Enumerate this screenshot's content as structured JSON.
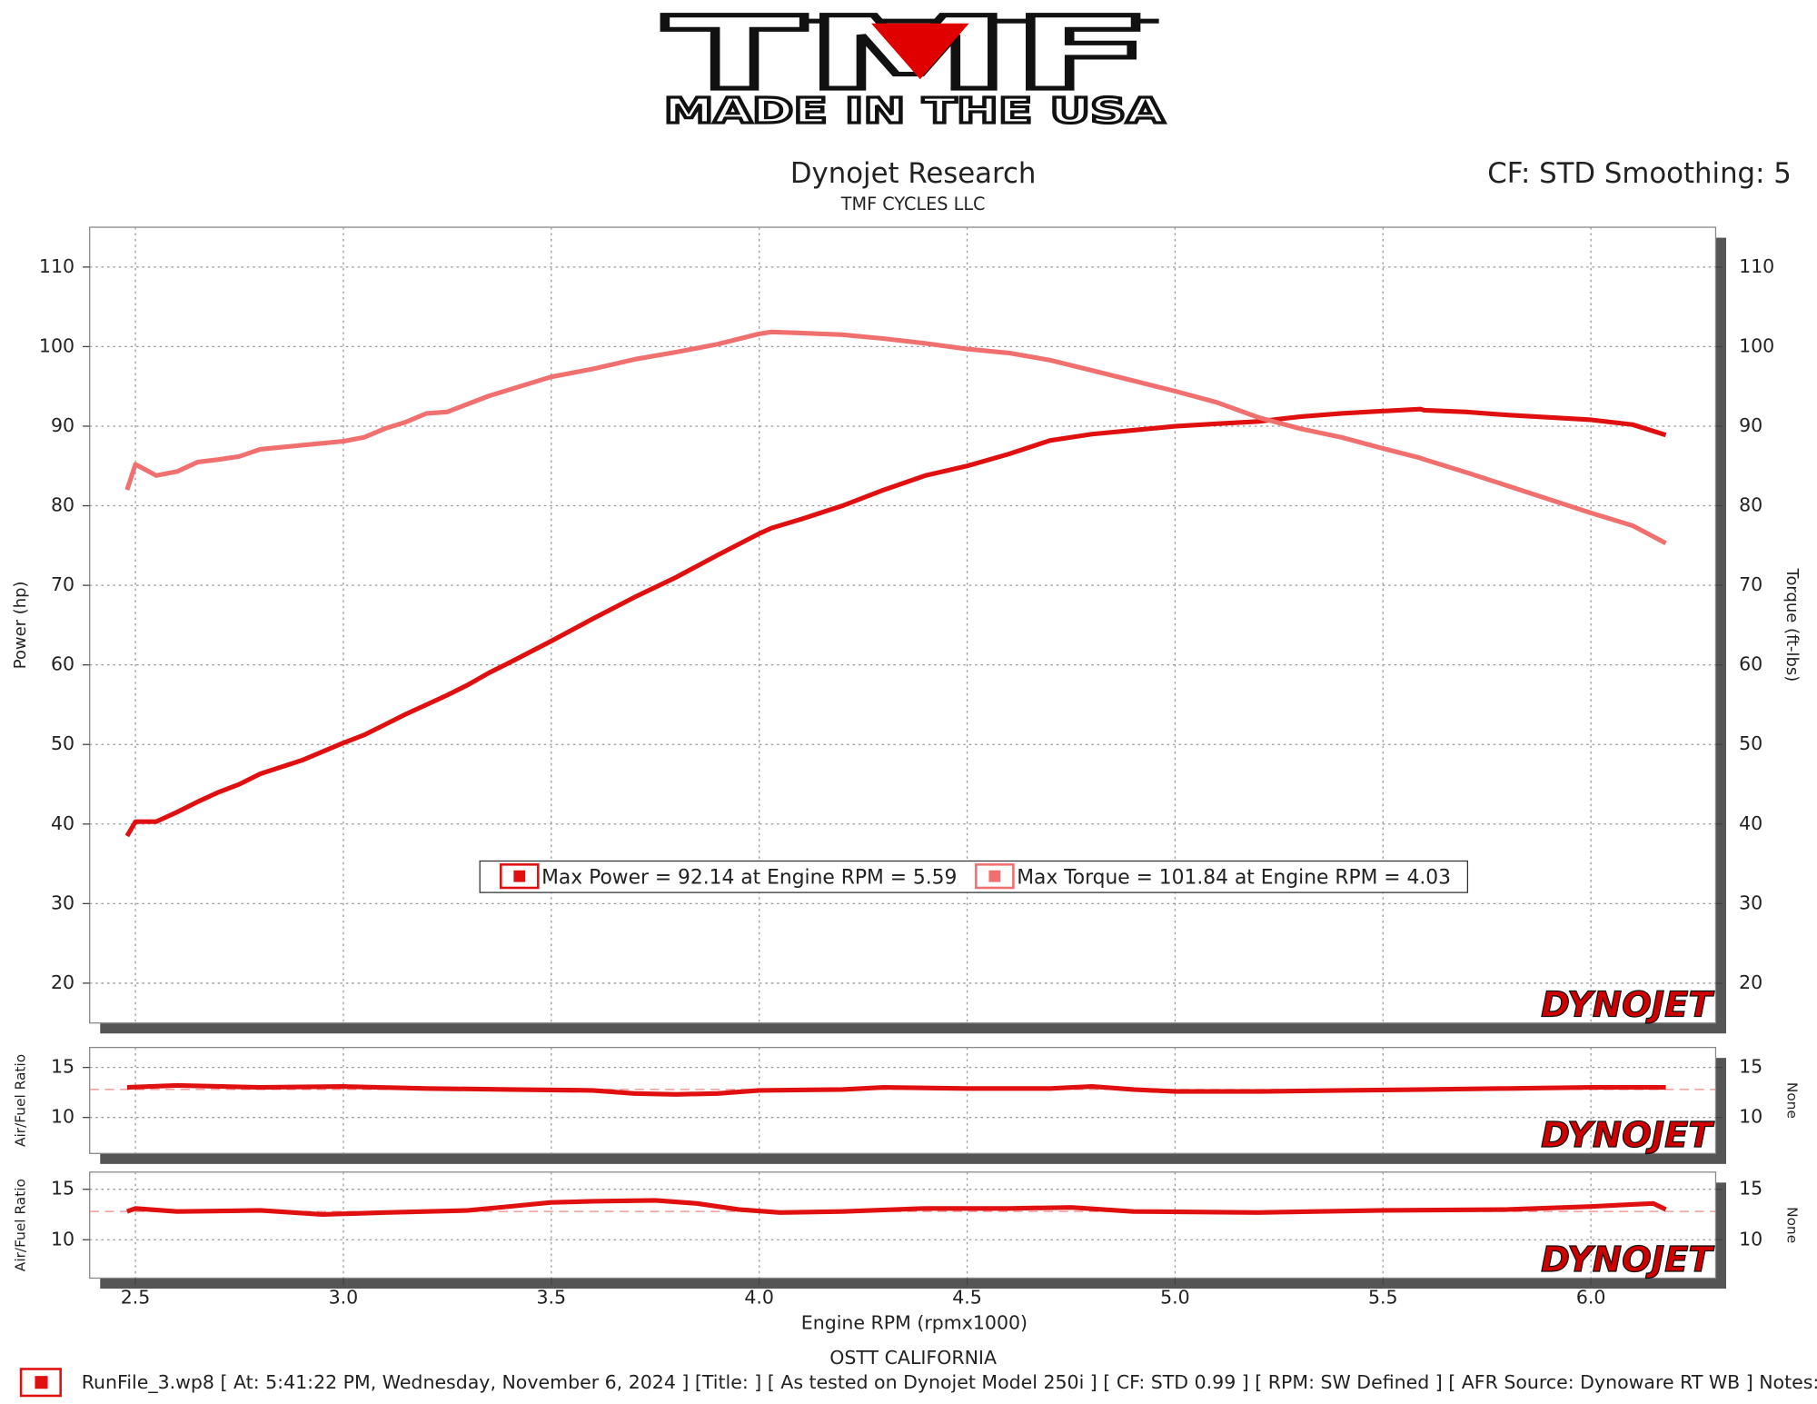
{
  "logo": {
    "title": "TMF",
    "subtitle": "MADE IN THE USA"
  },
  "header": {
    "title": "Dynojet Research",
    "subtitle": "TMF CYCLES LLC",
    "settings": "CF: STD Smoothing: 5"
  },
  "chart_data": [
    {
      "type": "line",
      "ylabel": "Power (hp)",
      "y2label": "Torque (ft-lbs)",
      "watermark": "DYNOJET",
      "xlim": [
        2.39,
        6.3
      ],
      "ylim": [
        15,
        115
      ],
      "yticks": [
        20,
        30,
        40,
        50,
        60,
        70,
        80,
        90,
        100,
        110
      ],
      "y2lim": [
        15,
        115
      ],
      "y2ticks": [
        20,
        30,
        40,
        50,
        60,
        70,
        80,
        90,
        100,
        110
      ],
      "grid": true,
      "x": [
        2.48,
        2.5,
        2.55,
        2.6,
        2.65,
        2.7,
        2.75,
        2.8,
        2.9,
        3.0,
        3.05,
        3.1,
        3.15,
        3.2,
        3.25,
        3.3,
        3.35,
        3.4,
        3.5,
        3.6,
        3.7,
        3.8,
        3.9,
        4.0,
        4.03,
        4.1,
        4.2,
        4.3,
        4.4,
        4.5,
        4.6,
        4.7,
        4.8,
        4.9,
        5.0,
        5.1,
        5.2,
        5.3,
        5.4,
        5.5,
        5.59,
        5.6,
        5.7,
        5.8,
        5.9,
        6.0,
        6.1,
        6.18
      ],
      "series": [
        {
          "name": "Max Power = 92.14 at Engine RPM = 5.59",
          "color": "#e01010",
          "values": [
            38.5,
            40.3,
            40.3,
            41.5,
            42.8,
            44,
            45,
            46.3,
            48,
            50.2,
            51.2,
            52.5,
            53.8,
            55,
            56.2,
            57.5,
            59,
            60.3,
            63,
            65.8,
            68.5,
            71,
            73.8,
            76.5,
            77.2,
            78.3,
            80,
            82,
            83.8,
            85,
            86.5,
            88.2,
            89,
            89.5,
            90,
            90.3,
            90.6,
            91.2,
            91.6,
            91.9,
            92.14,
            92,
            91.8,
            91.4,
            91.1,
            90.8,
            90.2,
            88.9
          ]
        },
        {
          "name": "Max Torque = 101.84 at Engine RPM = 4.03",
          "color": "#f07070",
          "axis": "y2",
          "values": [
            82,
            85.2,
            83.8,
            84.3,
            85.5,
            85.8,
            86.2,
            87.1,
            87.6,
            88.1,
            88.6,
            89.7,
            90.5,
            91.6,
            91.8,
            92.8,
            93.8,
            94.6,
            96.2,
            97.2,
            98.4,
            99.3,
            100.3,
            101.6,
            101.84,
            101.7,
            101.5,
            101,
            100.4,
            99.7,
            99.2,
            98.3,
            97,
            95.7,
            94.4,
            93,
            91.1,
            89.7,
            88.6,
            87.2,
            86,
            85.8,
            84.2,
            82.5,
            80.8,
            79.1,
            77.5,
            75.3
          ]
        }
      ]
    },
    {
      "type": "line",
      "ylabel": "Air/Fuel Ratio",
      "y2label": "None",
      "watermark": "DYNOJET",
      "xlim": [
        2.39,
        6.3
      ],
      "ylim": [
        6.4,
        17
      ],
      "yticks": [
        10,
        15
      ],
      "y2lim": [
        6.4,
        17
      ],
      "y2ticks": [
        10,
        15
      ],
      "grid": true,
      "reference": 12.8,
      "color": "#e01010",
      "x": [
        2.48,
        2.6,
        2.8,
        3.0,
        3.2,
        3.4,
        3.6,
        3.7,
        3.8,
        3.9,
        4.0,
        4.2,
        4.3,
        4.5,
        4.7,
        4.8,
        4.9,
        5.0,
        5.2,
        5.4,
        5.6,
        5.8,
        6.0,
        6.18
      ],
      "values": [
        13.0,
        13.2,
        13.0,
        13.1,
        12.9,
        12.8,
        12.7,
        12.4,
        12.3,
        12.4,
        12.7,
        12.8,
        13.0,
        12.9,
        12.9,
        13.1,
        12.8,
        12.6,
        12.6,
        12.7,
        12.8,
        12.9,
        13.0,
        13.0
      ]
    },
    {
      "type": "line",
      "ylabel": "Air/Fuel Ratio",
      "y2label": "None",
      "watermark": "DYNOJET",
      "xlabel": "Engine RPM (rpmx1000)",
      "xlim": [
        2.39,
        6.3
      ],
      "xticks": [
        2.5,
        {
          "value": 3,
          "label": "3.0"
        },
        3.5,
        {
          "value": 4,
          "label": "4.0"
        },
        4.5,
        {
          "value": 5,
          "label": "5.0"
        },
        5.5,
        {
          "value": 6,
          "label": "6.0"
        }
      ],
      "ylim": [
        6.2,
        16.7
      ],
      "yticks": [
        10,
        15
      ],
      "y2lim": [
        6.2,
        16.7
      ],
      "y2ticks": [
        10,
        15
      ],
      "grid": true,
      "reference": 12.8,
      "color": "#e01010",
      "x": [
        2.48,
        2.5,
        2.6,
        2.8,
        2.95,
        3.1,
        3.3,
        3.4,
        3.5,
        3.6,
        3.75,
        3.85,
        3.95,
        4.05,
        4.2,
        4.4,
        4.6,
        4.75,
        4.9,
        5.2,
        5.5,
        5.8,
        6.0,
        6.15,
        6.18
      ],
      "values": [
        12.8,
        13.1,
        12.8,
        12.9,
        12.5,
        12.7,
        12.9,
        13.3,
        13.7,
        13.8,
        13.9,
        13.6,
        13.0,
        12.7,
        12.8,
        13.1,
        13.1,
        13.2,
        12.8,
        12.7,
        12.9,
        13.0,
        13.3,
        13.6,
        13.0
      ]
    }
  ],
  "footer": {
    "location": "OSTT CALIFORNIA",
    "run": "RunFile_3.wp8 [ At: 5:41:22 PM, Wednesday, November 6, 2024 ] [Title: ]  [ As tested on Dynojet Model 250i ] [ CF: STD 0.99 ] [ RPM: SW Defined ] [ AFR Source: Dynoware RT WB ] Notes:"
  }
}
